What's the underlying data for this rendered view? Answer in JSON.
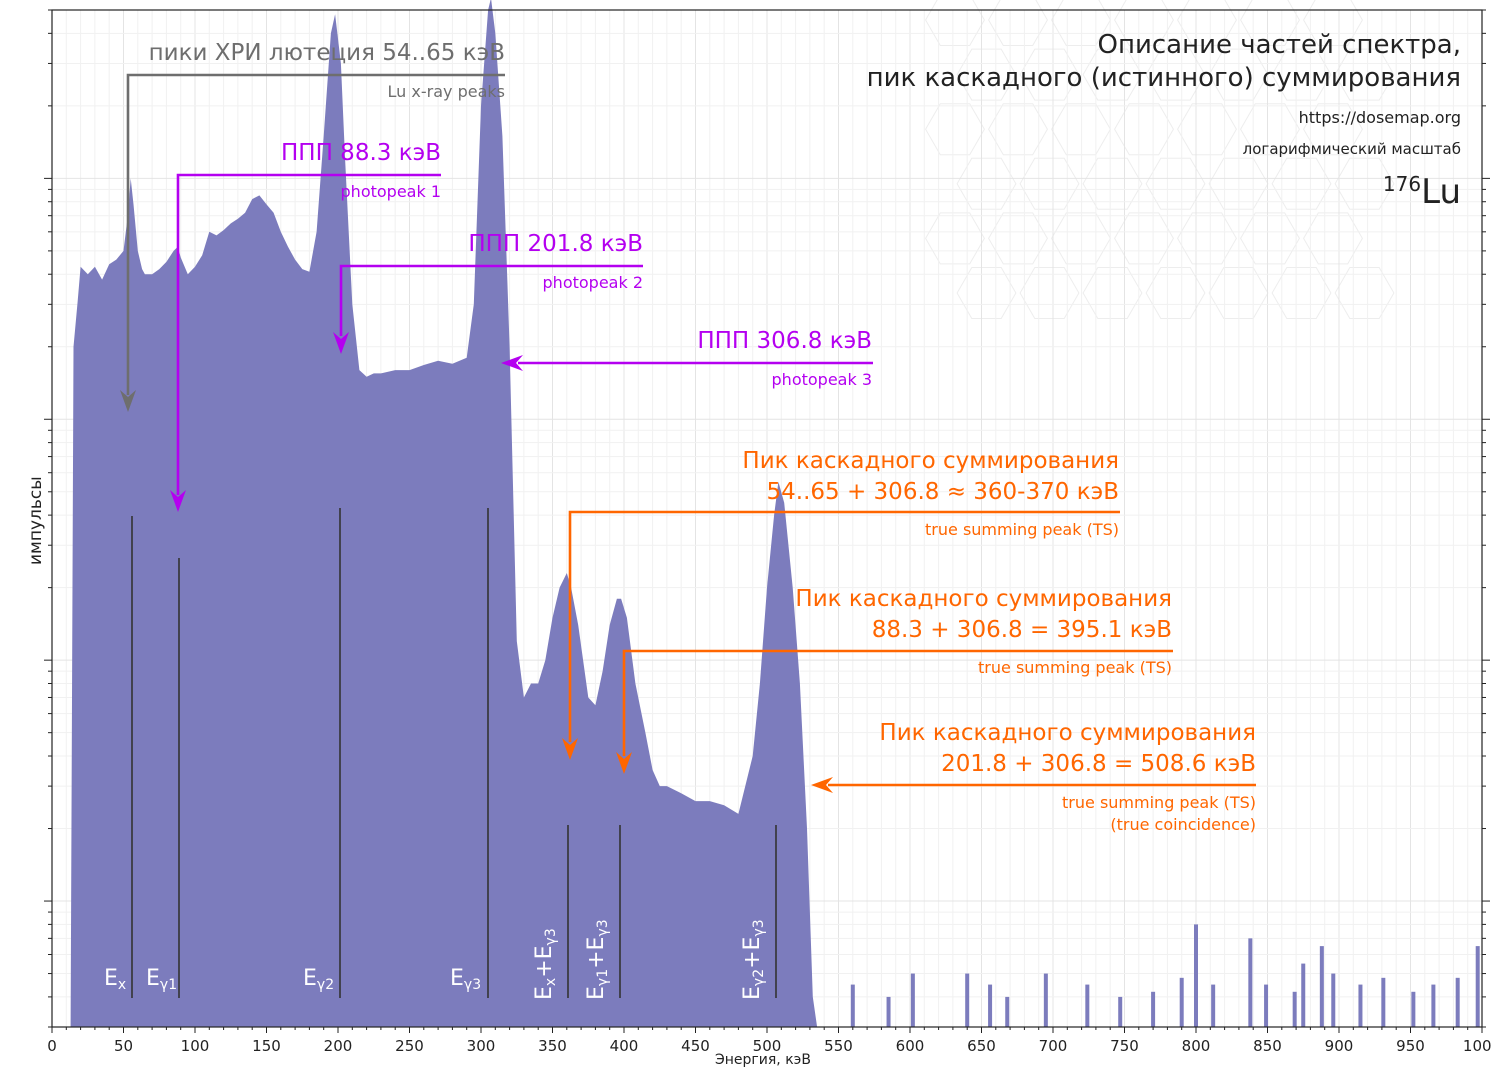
{
  "header": {
    "title_line1": "Описание частей спектра,",
    "title_line2": "пик каскадного (истинного) суммирования",
    "url": "https://dosemap.org",
    "scale_note": "логарифмический масштаб",
    "isotope_mass": "176",
    "isotope_symbol": "Lu"
  },
  "annotations": {
    "xray": {
      "title": "пики ХРИ лютеция 54..65 кэВ",
      "subtitle": "Lu x-ray peaks",
      "energy": 55
    },
    "pp1": {
      "title": "ППП  88.3 кэВ",
      "subtitle": "photopeak 1",
      "energy": 88.3
    },
    "pp2": {
      "title": "ППП  201.8 кэВ",
      "subtitle": "photopeak 2",
      "energy": 201.8
    },
    "pp3": {
      "title": "ППП  306.8 кэВ",
      "subtitle": "photopeak 3",
      "energy": 306.8
    },
    "ts1": {
      "line1": "Пик каскадного суммирования",
      "line2": "54..65 + 306.8 ≈ 360-370 кэВ",
      "subtitle": "true summing peak (TS)",
      "energy": 362
    },
    "ts2": {
      "line1": "Пик каскадного суммирования",
      "line2": "88.3 + 306.8 = 395.1 кэВ",
      "subtitle": "true summing peak (TS)",
      "energy": 395.1
    },
    "ts3": {
      "line1": "Пик каскадного суммирования",
      "line2": "201.8 + 306.8 = 508.6 кэВ",
      "subtitle": "true summing peak (TS)",
      "subtitle2": "(true coincidence)",
      "energy": 508.6
    }
  },
  "peak_labels": [
    {
      "base": "E",
      "sub": "x",
      "energy": 55
    },
    {
      "base": "E",
      "sub": "γ1",
      "energy": 88.3
    },
    {
      "base": "E",
      "sub": "γ2",
      "energy": 201.8
    },
    {
      "base": "E",
      "sub": "γ3",
      "energy": 306.8
    },
    {
      "base": "E",
      "sub": "x",
      "base2": "+E",
      "sub2": "γ3",
      "energy": 362
    },
    {
      "base": "E",
      "sub": "γ1",
      "base2": "+E",
      "sub2": "γ3",
      "energy": 398
    },
    {
      "base": "E",
      "sub": "γ2",
      "base2": "+E",
      "sub2": "γ3",
      "energy": 508.6
    }
  ],
  "colors": {
    "fill": "#7c7cbd",
    "gray": "#6e6e6e",
    "purple": "#b400f0",
    "orange": "#ff6600",
    "marker": "#333333"
  },
  "chart_data": {
    "type": "area",
    "title": "",
    "xlabel": "Энергия, кэВ",
    "ylabel": "импульсы",
    "xlim": [
      0,
      1000
    ],
    "x_ticks": [
      0,
      50,
      100,
      150,
      200,
      250,
      300,
      350,
      400,
      450,
      500,
      550,
      600,
      650,
      700,
      750,
      800,
      850,
      900,
      950,
      1000
    ],
    "y_scale": "log",
    "ylim": [
      0.3,
      5000
    ],
    "grid": true,
    "series": [
      {
        "x": [
          13,
          15,
          18,
          20,
          25,
          30,
          35,
          40,
          45,
          50,
          53,
          55,
          57,
          60,
          63,
          65,
          70,
          75,
          80,
          85,
          88,
          90,
          95,
          100,
          105,
          110,
          115,
          120,
          125,
          130,
          135,
          140,
          145,
          150,
          155,
          160,
          165,
          170,
          175,
          180,
          185,
          190,
          195,
          198,
          202,
          205,
          210,
          215,
          220,
          225,
          230,
          240,
          250,
          260,
          270,
          280,
          290,
          295,
          300,
          305,
          307,
          310,
          315,
          320,
          325,
          330,
          335,
          340,
          345,
          350,
          355,
          360,
          363,
          368,
          375,
          380,
          385,
          390,
          395,
          398,
          402,
          408,
          415,
          420,
          425,
          430,
          440,
          450,
          460,
          470,
          480,
          490,
          495,
          500,
          505,
          508,
          512,
          518,
          523,
          528,
          532,
          535,
          540
        ],
        "y": [
          0.3,
          200,
          310,
          430,
          400,
          430,
          380,
          440,
          460,
          500,
          700,
          1000,
          780,
          500,
          420,
          400,
          400,
          420,
          450,
          500,
          520,
          470,
          400,
          430,
          480,
          600,
          580,
          610,
          650,
          680,
          720,
          820,
          850,
          780,
          720,
          600,
          520,
          460,
          420,
          410,
          600,
          1500,
          4000,
          4800,
          3000,
          1200,
          300,
          160,
          150,
          155,
          155,
          160,
          160,
          168,
          175,
          170,
          180,
          300,
          2000,
          5000,
          5600,
          4000,
          1500,
          200,
          12,
          7,
          8,
          8,
          10,
          15,
          20,
          23,
          20,
          14,
          7,
          6.5,
          9,
          14,
          18,
          18,
          15,
          8,
          5,
          3.5,
          3,
          3,
          2.8,
          2.6,
          2.6,
          2.5,
          2.3,
          4,
          8,
          20,
          40,
          55,
          45,
          20,
          8,
          2,
          0.4,
          0.3,
          0.3
        ]
      }
    ],
    "noise_spikes": [
      [
        560,
        0.45
      ],
      [
        585,
        0.4
      ],
      [
        602,
        0.5
      ],
      [
        640,
        0.5
      ],
      [
        656,
        0.45
      ],
      [
        668,
        0.4
      ],
      [
        695,
        0.5
      ],
      [
        724,
        0.45
      ],
      [
        747,
        0.4
      ],
      [
        770,
        0.42
      ],
      [
        790,
        0.48
      ],
      [
        800,
        0.8
      ],
      [
        812,
        0.45
      ],
      [
        838,
        0.7
      ],
      [
        849,
        0.45
      ],
      [
        869,
        0.42
      ],
      [
        875,
        0.55
      ],
      [
        888,
        0.65
      ],
      [
        896,
        0.5
      ],
      [
        915,
        0.45
      ],
      [
        931,
        0.48
      ],
      [
        952,
        0.42
      ],
      [
        966,
        0.45
      ],
      [
        983,
        0.48
      ],
      [
        997,
        0.65
      ]
    ]
  }
}
